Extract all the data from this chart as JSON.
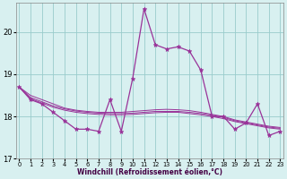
{
  "xlabel": "Windchill (Refroidissement éolien,°C)",
  "hours": [
    0,
    1,
    2,
    3,
    4,
    5,
    6,
    7,
    8,
    9,
    10,
    11,
    12,
    13,
    14,
    15,
    16,
    17,
    18,
    19,
    20,
    21,
    22,
    23
  ],
  "line1": [
    18.7,
    18.4,
    18.3,
    18.1,
    17.9,
    17.7,
    17.7,
    17.65,
    18.4,
    17.65,
    18.9,
    20.55,
    19.7,
    19.6,
    19.65,
    19.55,
    19.1,
    18.0,
    18.0,
    17.7,
    17.85,
    18.3,
    17.55,
    17.65
  ],
  "line2": [
    18.7,
    18.42,
    18.32,
    18.22,
    18.15,
    18.1,
    18.07,
    18.05,
    18.04,
    18.04,
    18.05,
    18.07,
    18.09,
    18.1,
    18.1,
    18.07,
    18.04,
    18.0,
    17.95,
    17.88,
    17.83,
    17.78,
    17.73,
    17.7
  ],
  "line3": [
    18.7,
    18.45,
    18.35,
    18.25,
    18.18,
    18.13,
    18.1,
    18.08,
    18.07,
    18.07,
    18.08,
    18.1,
    18.12,
    18.12,
    18.12,
    18.1,
    18.07,
    18.03,
    17.98,
    17.9,
    17.85,
    17.8,
    17.75,
    17.72
  ],
  "line4": [
    18.7,
    18.5,
    18.4,
    18.3,
    18.2,
    18.15,
    18.12,
    18.1,
    18.1,
    18.1,
    18.12,
    18.14,
    18.16,
    18.17,
    18.16,
    18.14,
    18.1,
    18.05,
    18.0,
    17.92,
    17.87,
    17.82,
    17.77,
    17.74
  ],
  "line_color": "#993399",
  "bg_color": "#d8f0f0",
  "grid_color": "#99cccc",
  "ylim": [
    17.0,
    20.7
  ],
  "yticks": [
    17,
    18,
    19,
    20
  ],
  "xticks": [
    0,
    1,
    2,
    3,
    4,
    5,
    6,
    7,
    8,
    9,
    10,
    11,
    12,
    13,
    14,
    15,
    16,
    17,
    18,
    19,
    20,
    21,
    22,
    23
  ]
}
